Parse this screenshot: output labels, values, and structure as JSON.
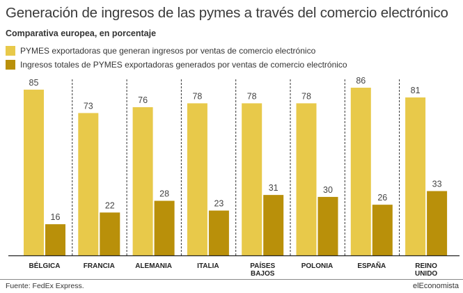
{
  "title": "Generación de ingresos de las pymes a través del comercio electrónico",
  "subtitle": "Comparativa europea, en porcentaje",
  "source": "Fuente: FedEx Express.",
  "brand": "elEconomista",
  "colors": {
    "series1": "#e8c94a",
    "series2": "#b9900a",
    "divider": "#333333",
    "axis": "#222222",
    "label": "#444444"
  },
  "chart_data": {
    "type": "bar",
    "categories": [
      [
        "BÉLGICA"
      ],
      [
        "FRANCIA"
      ],
      [
        "ALEMANIA"
      ],
      [
        "ITALIA"
      ],
      [
        "PAÍSES",
        "BAJOS"
      ],
      [
        "POLONIA"
      ],
      [
        "ESPAÑA"
      ],
      [
        "REINO",
        "UNIDO"
      ]
    ],
    "series": [
      {
        "name": "PYMES exportadoras que generan ingresos por ventas de comercio electrónico",
        "values": [
          85,
          73,
          76,
          78,
          78,
          78,
          86,
          81
        ]
      },
      {
        "name": "Ingresos totales de PYMES exportadoras generados por ventas de comercio electrónico",
        "values": [
          16,
          22,
          28,
          23,
          31,
          30,
          26,
          33
        ]
      }
    ],
    "ylim": [
      0,
      100
    ],
    "xlabel": "",
    "ylabel": "",
    "grid": false,
    "legend": "top-left"
  }
}
